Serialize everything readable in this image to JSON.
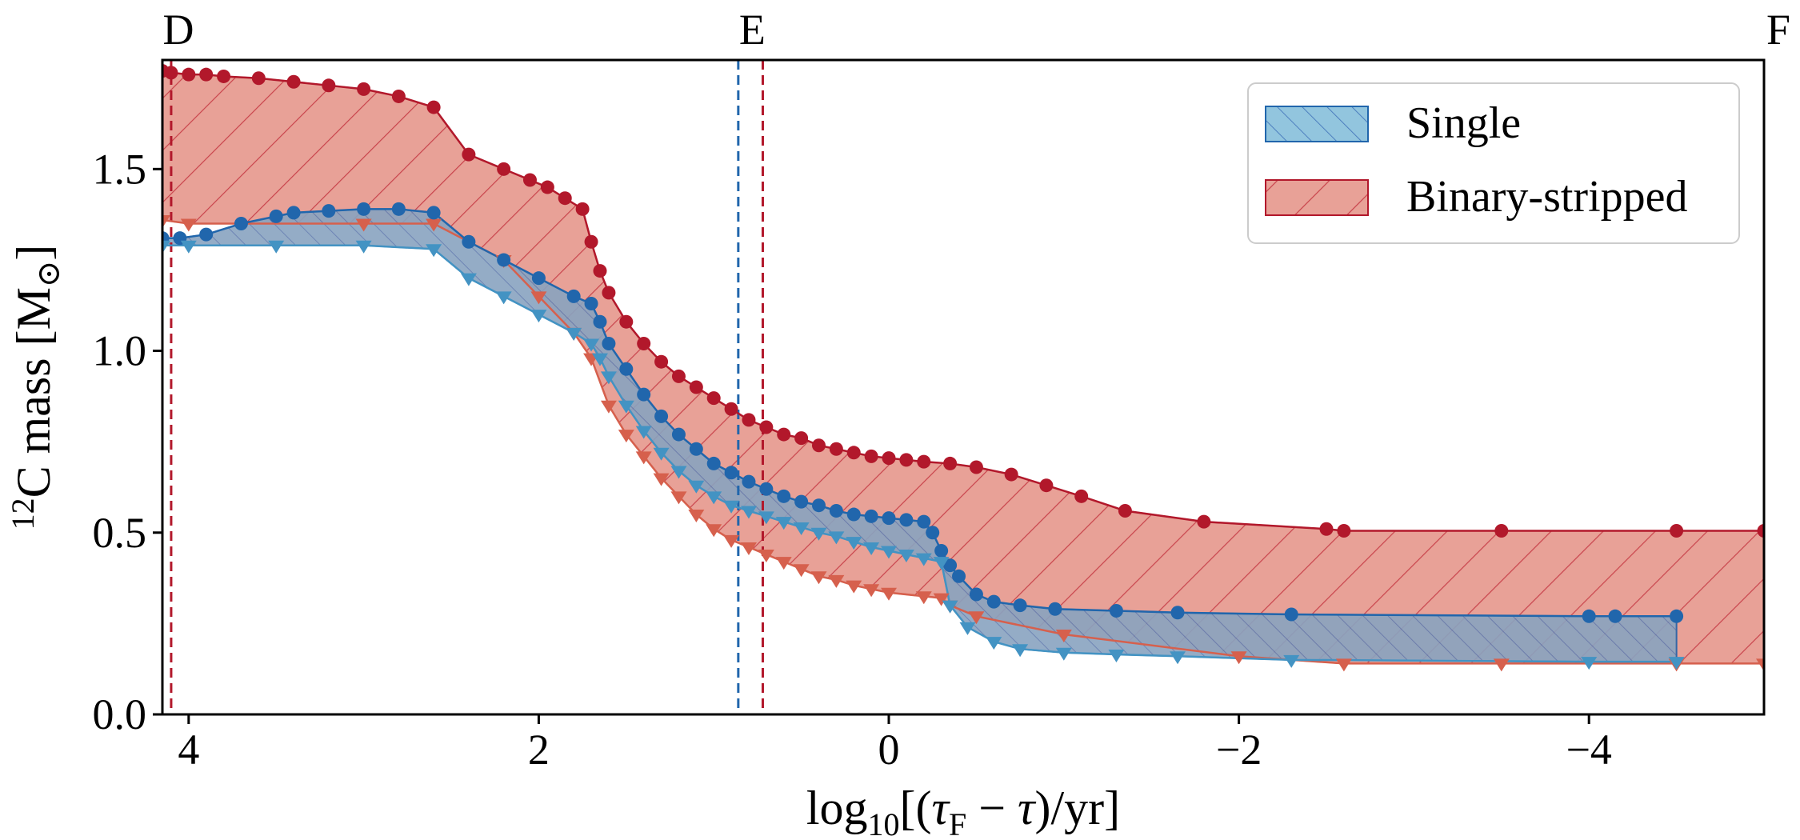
{
  "chart_data": {
    "type": "line",
    "title": "",
    "xlabel": "log10[(τF − τ)/yr]",
    "ylabel": "12C mass [M⊙]",
    "xlim": [
      4.15,
      -5.0
    ],
    "ylim": [
      0.0,
      1.8
    ],
    "xticks": [
      4,
      2,
      0,
      -2,
      -4
    ],
    "xtick_labels": [
      "4",
      "2",
      "0",
      "−2",
      "−4"
    ],
    "yticks": [
      0.0,
      0.5,
      1.0,
      1.5
    ],
    "ytick_labels": [
      "0.0",
      "0.5",
      "1.0",
      "1.5"
    ],
    "phase_markers": [
      {
        "label": "D",
        "x": 4.15
      },
      {
        "label": "E",
        "x": 0.78
      },
      {
        "label": "F",
        "x": -5.0
      }
    ],
    "vlines": [
      {
        "x": 4.1,
        "color": "#b2182b",
        "style": "dashed"
      },
      {
        "x": 0.86,
        "color": "#2166ac",
        "style": "dashed"
      },
      {
        "x": 0.72,
        "color": "#b2182b",
        "style": "dashed"
      }
    ],
    "legend": {
      "position": "top-right",
      "entries": [
        {
          "label": "Single",
          "color": "#92c5de"
        },
        {
          "label": "Binary-stripped",
          "color": "#e8a197"
        }
      ]
    },
    "series": [
      {
        "name": "Binary-stripped upper",
        "color": "#b2182b",
        "marker": "circle",
        "x": [
          4.15,
          4.1,
          4.0,
          3.9,
          3.8,
          3.6,
          3.4,
          3.2,
          3.0,
          2.8,
          2.6,
          2.4,
          2.2,
          2.05,
          1.95,
          1.85,
          1.75,
          1.7,
          1.65,
          1.6,
          1.5,
          1.4,
          1.3,
          1.2,
          1.1,
          1.0,
          0.9,
          0.8,
          0.7,
          0.6,
          0.5,
          0.4,
          0.3,
          0.2,
          0.1,
          0.0,
          -0.1,
          -0.2,
          -0.35,
          -0.5,
          -0.7,
          -0.9,
          -1.1,
          -1.35,
          -1.8,
          -2.5,
          -2.6,
          -3.5,
          -4.5,
          -5.0
        ],
        "y": [
          1.77,
          1.765,
          1.76,
          1.76,
          1.755,
          1.75,
          1.74,
          1.73,
          1.72,
          1.7,
          1.67,
          1.54,
          1.5,
          1.47,
          1.45,
          1.42,
          1.39,
          1.3,
          1.22,
          1.16,
          1.08,
          1.02,
          0.97,
          0.93,
          0.9,
          0.87,
          0.84,
          0.81,
          0.79,
          0.77,
          0.76,
          0.74,
          0.73,
          0.72,
          0.71,
          0.705,
          0.7,
          0.695,
          0.69,
          0.68,
          0.66,
          0.63,
          0.6,
          0.56,
          0.53,
          0.51,
          0.505,
          0.505,
          0.505,
          0.505
        ]
      },
      {
        "name": "Binary-stripped lower",
        "color": "#d6604d",
        "marker": "triangle",
        "x": [
          4.15,
          4.0,
          3.0,
          2.6,
          2.2,
          2.0,
          1.8,
          1.7,
          1.6,
          1.5,
          1.4,
          1.3,
          1.2,
          1.1,
          1.0,
          0.9,
          0.8,
          0.7,
          0.6,
          0.5,
          0.4,
          0.3,
          0.2,
          0.1,
          0.0,
          -0.2,
          -0.3,
          -0.35,
          -0.5,
          -1.0,
          -2.0,
          -2.6,
          -3.5,
          -4.5,
          -5.0
        ],
        "y": [
          1.36,
          1.35,
          1.35,
          1.35,
          1.25,
          1.15,
          1.05,
          0.98,
          0.85,
          0.77,
          0.71,
          0.65,
          0.6,
          0.55,
          0.51,
          0.48,
          0.46,
          0.44,
          0.42,
          0.4,
          0.38,
          0.37,
          0.355,
          0.345,
          0.335,
          0.325,
          0.32,
          0.3,
          0.27,
          0.22,
          0.16,
          0.14,
          0.14,
          0.14,
          0.14
        ]
      },
      {
        "name": "Single upper",
        "color": "#2166ac",
        "marker": "circle",
        "x": [
          4.15,
          4.05,
          3.9,
          3.7,
          3.5,
          3.4,
          3.2,
          3.0,
          2.8,
          2.6,
          2.4,
          2.2,
          2.0,
          1.8,
          1.7,
          1.65,
          1.6,
          1.5,
          1.4,
          1.3,
          1.2,
          1.1,
          1.0,
          0.9,
          0.8,
          0.7,
          0.6,
          0.5,
          0.4,
          0.3,
          0.2,
          0.1,
          0.0,
          -0.1,
          -0.2,
          -0.25,
          -0.3,
          -0.35,
          -0.4,
          -0.5,
          -0.6,
          -0.75,
          -0.95,
          -1.3,
          -1.65,
          -2.3,
          -4.0,
          -4.15,
          -4.5
        ],
        "y": [
          1.31,
          1.31,
          1.32,
          1.35,
          1.37,
          1.38,
          1.385,
          1.39,
          1.39,
          1.38,
          1.3,
          1.25,
          1.2,
          1.15,
          1.13,
          1.08,
          1.02,
          0.95,
          0.88,
          0.82,
          0.77,
          0.73,
          0.69,
          0.665,
          0.64,
          0.62,
          0.6,
          0.585,
          0.575,
          0.56,
          0.55,
          0.545,
          0.54,
          0.535,
          0.53,
          0.5,
          0.45,
          0.41,
          0.38,
          0.33,
          0.31,
          0.3,
          0.29,
          0.285,
          0.28,
          0.275,
          0.27,
          0.27,
          0.27
        ]
      },
      {
        "name": "Single lower",
        "color": "#4393c3",
        "marker": "triangle",
        "x": [
          4.15,
          4.0,
          3.5,
          3.0,
          2.6,
          2.4,
          2.2,
          2.0,
          1.8,
          1.7,
          1.65,
          1.6,
          1.5,
          1.4,
          1.3,
          1.2,
          1.1,
          1.0,
          0.9,
          0.8,
          0.7,
          0.6,
          0.5,
          0.4,
          0.3,
          0.2,
          0.1,
          0.0,
          -0.1,
          -0.2,
          -0.3,
          -0.35,
          -0.45,
          -0.6,
          -0.75,
          -1.0,
          -1.3,
          -1.65,
          -2.3,
          -4.0,
          -4.5
        ],
        "y": [
          1.29,
          1.29,
          1.29,
          1.29,
          1.28,
          1.2,
          1.15,
          1.1,
          1.05,
          1.02,
          0.98,
          0.93,
          0.85,
          0.78,
          0.72,
          0.67,
          0.63,
          0.6,
          0.575,
          0.56,
          0.545,
          0.53,
          0.515,
          0.5,
          0.49,
          0.475,
          0.46,
          0.45,
          0.44,
          0.43,
          0.42,
          0.3,
          0.24,
          0.2,
          0.18,
          0.17,
          0.165,
          0.16,
          0.15,
          0.145,
          0.145
        ]
      }
    ]
  }
}
